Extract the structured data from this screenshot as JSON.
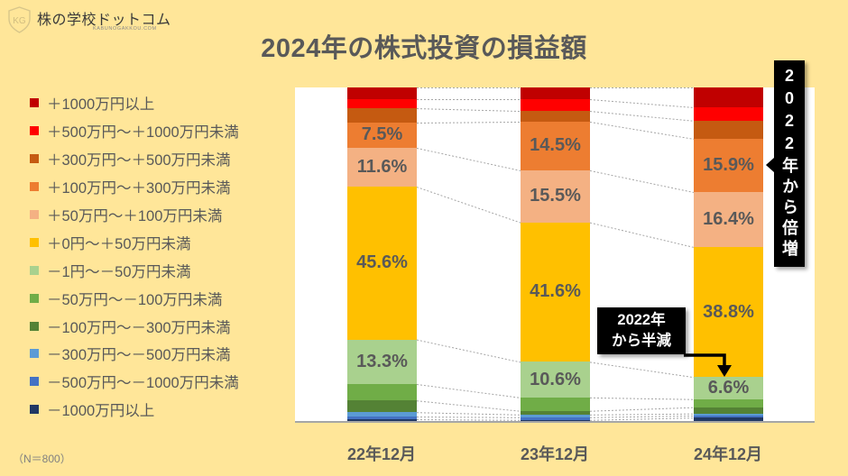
{
  "logo": {
    "name": "株の学校ドットコム",
    "sub": "KABUNOGAKKOU.COM"
  },
  "chart_data": {
    "type": "bar",
    "stacked": true,
    "percent_stacked": true,
    "title": "2024年の株式投資の損益額",
    "xlabel": "",
    "ylabel": "",
    "ylim": [
      0,
      100
    ],
    "grid": false,
    "legend_position": "left",
    "categories": [
      "22年12月",
      "23年12月",
      "24年12月"
    ],
    "series": [
      {
        "name": "＋1000万円以上",
        "color": "#C00000",
        "values": [
          3.5,
          3.5,
          5.9
        ],
        "labels": [
          null,
          null,
          null
        ]
      },
      {
        "name": "＋500万円～＋1000万円未満",
        "color": "#FF0000",
        "values": [
          2.7,
          3.5,
          4.0
        ],
        "labels": [
          null,
          null,
          null
        ]
      },
      {
        "name": "＋300万円～＋500万円未満",
        "color": "#C55A11",
        "values": [
          4.3,
          3.2,
          5.4
        ],
        "labels": [
          null,
          null,
          null
        ]
      },
      {
        "name": "＋100万円～＋300万円未満",
        "color": "#ED7D31",
        "values": [
          7.5,
          14.5,
          15.9
        ],
        "labels": [
          "7.5%",
          "14.5%",
          "15.9%"
        ]
      },
      {
        "name": "＋50万円～＋100万円未満",
        "color": "#F4B183",
        "values": [
          11.6,
          15.5,
          16.4
        ],
        "labels": [
          "11.6%",
          "15.5%",
          "16.4%"
        ]
      },
      {
        "name": "＋0円～＋50万円未満",
        "color": "#FFC000",
        "values": [
          45.6,
          41.6,
          38.8
        ],
        "labels": [
          "45.6%",
          "41.6%",
          "38.8%"
        ]
      },
      {
        "name": "－1円～－50万円未満",
        "color": "#A9D18E",
        "values": [
          13.3,
          10.6,
          6.6
        ],
        "labels": [
          "13.3%",
          "10.6%",
          "6.6%"
        ]
      },
      {
        "name": "－50万円～－100万円未満",
        "color": "#70AD47",
        "values": [
          4.9,
          4.0,
          2.4
        ],
        "labels": [
          null,
          null,
          null
        ]
      },
      {
        "name": "－100万円～－300万円未満",
        "color": "#548235",
        "values": [
          3.5,
          1.1,
          1.9
        ],
        "labels": [
          null,
          null,
          null
        ]
      },
      {
        "name": "－300万円～－500万円未満",
        "color": "#5B9BD5",
        "values": [
          1.3,
          0.8,
          0.6
        ],
        "labels": [
          null,
          null,
          null
        ]
      },
      {
        "name": "－500万円～－1000万円未満",
        "color": "#4472C4",
        "values": [
          0.8,
          0.8,
          0.6
        ],
        "labels": [
          null,
          null,
          null
        ]
      },
      {
        "name": "－1000万円以上",
        "color": "#203864",
        "values": [
          0.8,
          0.6,
          1.3
        ],
        "labels": [
          null,
          null,
          null
        ]
      }
    ],
    "annotations": [
      {
        "text": "2022年から倍増",
        "target": "24年12月 ＋100万円～＋300万円未満"
      },
      {
        "text": "2022年から半減",
        "target": "24年12月 －1円～－50万円未満"
      }
    ],
    "note": "（N＝800）"
  },
  "callouts": {
    "double": "2022年から倍増",
    "half_line1": "2022年",
    "half_line2": "から半減"
  }
}
